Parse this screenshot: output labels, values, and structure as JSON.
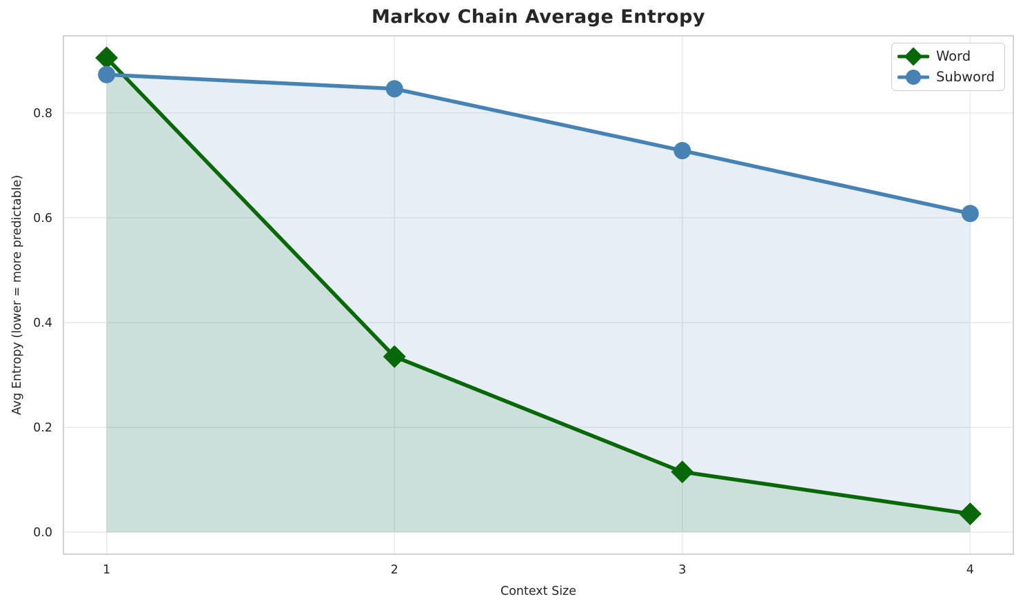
{
  "text_color": "#262626",
  "grid_color": "#e8e8e8",
  "spine_color": "#cdcdcd",
  "chart_data": {
    "type": "line",
    "title": "Markov Chain Average Entropy",
    "xlabel": "Context Size",
    "ylabel": "Avg Entropy (lower = more predictable)",
    "x": [
      1,
      2,
      3,
      4
    ],
    "x_tick_labels": [
      "1",
      "2",
      "3",
      "4"
    ],
    "y_tick_values": [
      0.0,
      0.2,
      0.4,
      0.6,
      0.8
    ],
    "y_tick_labels": [
      "0.0",
      "0.2",
      "0.4",
      "0.6",
      "0.8"
    ],
    "xlim": [
      0.85,
      4.15
    ],
    "ylim": [
      -0.042,
      0.947
    ],
    "grid": true,
    "legend_position": "upper right",
    "series": [
      {
        "name": "Word",
        "values": [
          0.905,
          0.335,
          0.115,
          0.035
        ],
        "color": "#086808",
        "marker": "diamond",
        "fill": true,
        "fill_alpha": 0.12
      },
      {
        "name": "Subword",
        "values": [
          0.873,
          0.846,
          0.728,
          0.608
        ],
        "color": "#4682b4",
        "marker": "circle",
        "fill": true,
        "fill_alpha": 0.13
      }
    ]
  }
}
